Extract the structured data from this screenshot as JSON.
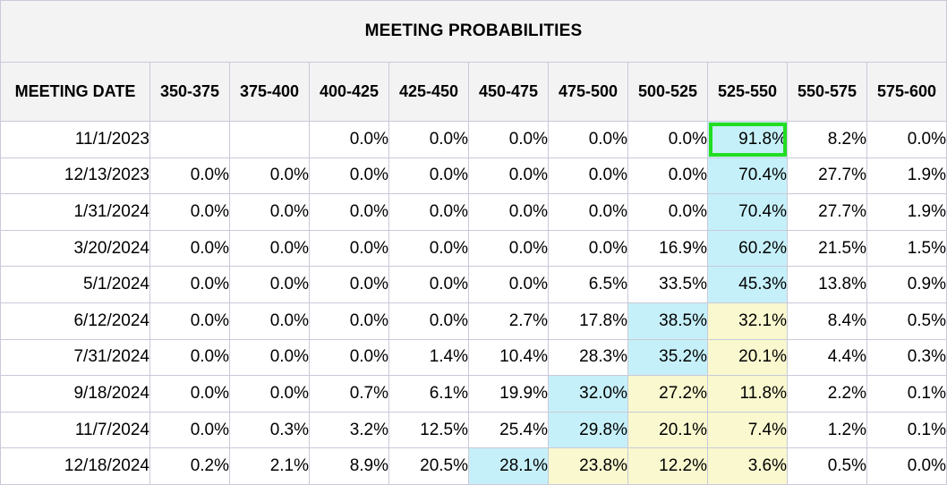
{
  "title": "MEETING PROBABILITIES",
  "date_header": "MEETING DATE",
  "ranges": [
    "350-375",
    "375-400",
    "400-425",
    "425-450",
    "450-475",
    "475-500",
    "500-525",
    "525-550",
    "550-575",
    "575-600"
  ],
  "rows": [
    {
      "date": "11/1/2023",
      "values": [
        "",
        "",
        "0.0%",
        "0.0%",
        "0.0%",
        "0.0%",
        "0.0%",
        "91.8%",
        "8.2%",
        "0.0%"
      ]
    },
    {
      "date": "12/13/2023",
      "values": [
        "0.0%",
        "0.0%",
        "0.0%",
        "0.0%",
        "0.0%",
        "0.0%",
        "0.0%",
        "70.4%",
        "27.7%",
        "1.9%"
      ]
    },
    {
      "date": "1/31/2024",
      "values": [
        "0.0%",
        "0.0%",
        "0.0%",
        "0.0%",
        "0.0%",
        "0.0%",
        "0.0%",
        "70.4%",
        "27.7%",
        "1.9%"
      ]
    },
    {
      "date": "3/20/2024",
      "values": [
        "0.0%",
        "0.0%",
        "0.0%",
        "0.0%",
        "0.0%",
        "0.0%",
        "16.9%",
        "60.2%",
        "21.5%",
        "1.5%"
      ]
    },
    {
      "date": "5/1/2024",
      "values": [
        "0.0%",
        "0.0%",
        "0.0%",
        "0.0%",
        "0.0%",
        "6.5%",
        "33.5%",
        "45.3%",
        "13.8%",
        "0.9%"
      ]
    },
    {
      "date": "6/12/2024",
      "values": [
        "0.0%",
        "0.0%",
        "0.0%",
        "0.0%",
        "2.7%",
        "17.8%",
        "38.5%",
        "32.1%",
        "8.4%",
        "0.5%"
      ]
    },
    {
      "date": "7/31/2024",
      "values": [
        "0.0%",
        "0.0%",
        "0.0%",
        "1.4%",
        "10.4%",
        "28.3%",
        "35.2%",
        "20.1%",
        "4.4%",
        "0.3%"
      ]
    },
    {
      "date": "9/18/2024",
      "values": [
        "0.0%",
        "0.0%",
        "0.7%",
        "6.1%",
        "19.9%",
        "32.0%",
        "27.2%",
        "11.8%",
        "2.2%",
        "0.1%"
      ]
    },
    {
      "date": "11/7/2024",
      "values": [
        "0.0%",
        "0.3%",
        "3.2%",
        "12.5%",
        "25.4%",
        "29.8%",
        "20.1%",
        "7.4%",
        "1.2%",
        "0.1%"
      ]
    },
    {
      "date": "12/18/2024",
      "values": [
        "0.2%",
        "2.1%",
        "8.9%",
        "20.5%",
        "28.1%",
        "23.8%",
        "12.2%",
        "3.6%",
        "0.5%",
        "0.0%"
      ]
    }
  ],
  "highlights": {
    "blue": [
      [
        0,
        7
      ],
      [
        1,
        7
      ],
      [
        2,
        7
      ],
      [
        3,
        7
      ],
      [
        4,
        7
      ],
      [
        5,
        6
      ],
      [
        6,
        6
      ],
      [
        7,
        5
      ],
      [
        8,
        5
      ],
      [
        9,
        4
      ]
    ],
    "yellow": [
      [
        5,
        7
      ],
      [
        6,
        7
      ],
      [
        7,
        6
      ],
      [
        7,
        7
      ],
      [
        8,
        6
      ],
      [
        8,
        7
      ],
      [
        9,
        5
      ],
      [
        9,
        6
      ],
      [
        9,
        7
      ]
    ],
    "outlined": [
      0,
      7
    ]
  },
  "colors": {
    "blue": "#c6f0f9",
    "yellow": "#f9f8cf",
    "outline": "#22dd22",
    "header_bg": "#f3f3f4",
    "border": "#c9c9d9"
  }
}
